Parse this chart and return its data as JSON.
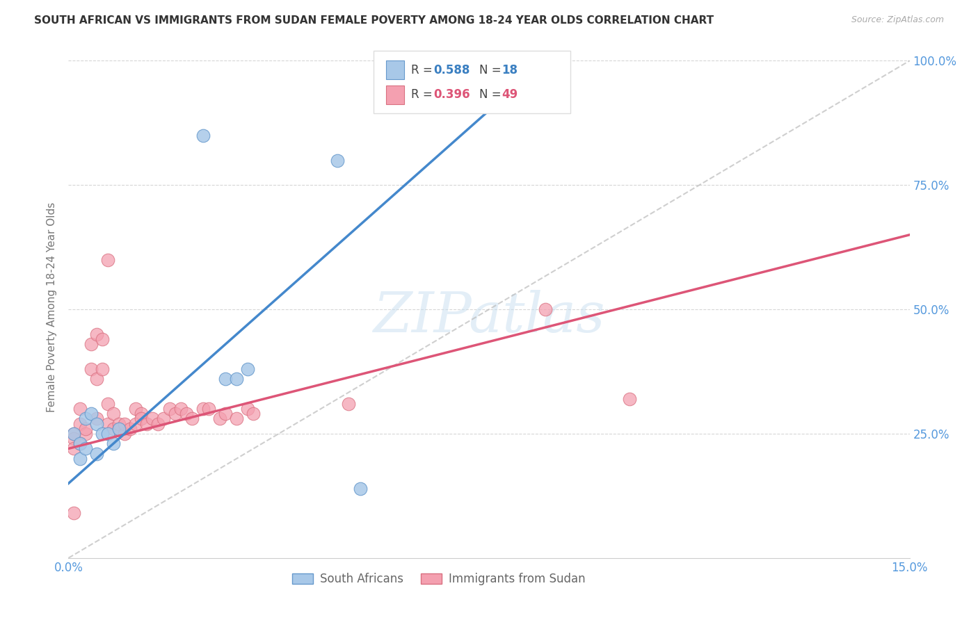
{
  "title": "SOUTH AFRICAN VS IMMIGRANTS FROM SUDAN FEMALE POVERTY AMONG 18-24 YEAR OLDS CORRELATION CHART",
  "source": "Source: ZipAtlas.com",
  "ylabel_label": "Female Poverty Among 18-24 Year Olds",
  "legend_bottom_labels": [
    "South Africans",
    "Immigrants from Sudan"
  ],
  "legend_r1": "R = 0.588",
  "legend_n1": "N = 18",
  "legend_r2": "R = 0.396",
  "legend_n2": "N = 49",
  "xmin": 0.0,
  "xmax": 0.15,
  "ymin": 0.0,
  "ymax": 1.0,
  "ytick_positions": [
    0.0,
    0.25,
    0.5,
    0.75,
    1.0
  ],
  "ytick_labels": [
    "",
    "25.0%",
    "50.0%",
    "75.0%",
    "100.0%"
  ],
  "xtick_positions": [
    0.0,
    0.05,
    0.1,
    0.15
  ],
  "xtick_labels": [
    "0.0%",
    "",
    "",
    "15.0%"
  ],
  "grid_color": "#cccccc",
  "background_color": "#ffffff",
  "blue_scatter_color": "#a8c8e8",
  "blue_edge_color": "#6699cc",
  "pink_scatter_color": "#f4a0b0",
  "pink_edge_color": "#d97080",
  "trend_blue": "#4488cc",
  "trend_pink": "#dd5577",
  "diagonal_color": "#bbbbbb",
  "watermark": "ZIPatlas",
  "south_africans_x": [
    0.001,
    0.002,
    0.002,
    0.003,
    0.003,
    0.004,
    0.005,
    0.005,
    0.006,
    0.007,
    0.008,
    0.009,
    0.024,
    0.028,
    0.03,
    0.032,
    0.048,
    0.052
  ],
  "south_africans_y": [
    0.25,
    0.2,
    0.23,
    0.22,
    0.28,
    0.29,
    0.21,
    0.27,
    0.25,
    0.25,
    0.23,
    0.26,
    0.85,
    0.36,
    0.36,
    0.38,
    0.8,
    0.14
  ],
  "immigrants_sudan_x": [
    0.001,
    0.001,
    0.001,
    0.001,
    0.002,
    0.002,
    0.002,
    0.003,
    0.003,
    0.004,
    0.004,
    0.005,
    0.005,
    0.005,
    0.006,
    0.006,
    0.007,
    0.007,
    0.007,
    0.008,
    0.008,
    0.009,
    0.009,
    0.01,
    0.01,
    0.011,
    0.012,
    0.012,
    0.013,
    0.013,
    0.014,
    0.015,
    0.016,
    0.017,
    0.018,
    0.019,
    0.02,
    0.021,
    0.022,
    0.024,
    0.025,
    0.027,
    0.028,
    0.03,
    0.032,
    0.033,
    0.05,
    0.085,
    0.1
  ],
  "immigrants_sudan_y": [
    0.25,
    0.24,
    0.22,
    0.09,
    0.27,
    0.3,
    0.23,
    0.25,
    0.26,
    0.38,
    0.43,
    0.45,
    0.36,
    0.28,
    0.44,
    0.38,
    0.6,
    0.31,
    0.27,
    0.26,
    0.29,
    0.26,
    0.27,
    0.25,
    0.27,
    0.26,
    0.3,
    0.27,
    0.29,
    0.28,
    0.27,
    0.28,
    0.27,
    0.28,
    0.3,
    0.29,
    0.3,
    0.29,
    0.28,
    0.3,
    0.3,
    0.28,
    0.29,
    0.28,
    0.3,
    0.29,
    0.31,
    0.5,
    0.32
  ]
}
